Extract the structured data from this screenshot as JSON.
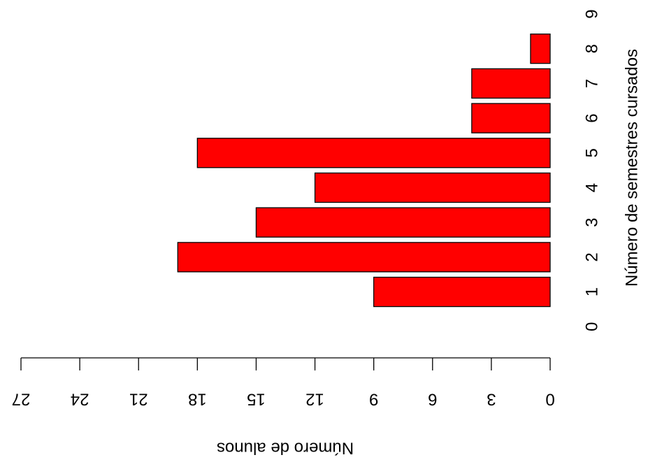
{
  "chart_data": {
    "type": "bar",
    "orientation": "horizontal",
    "x_label": "Número de alunos",
    "y_label": "Número de semestres cursados",
    "categories": [
      "0",
      "1",
      "2",
      "3",
      "4",
      "5",
      "6",
      "7",
      "8",
      "9"
    ],
    "values": [
      0,
      9,
      19,
      15,
      12,
      18,
      4,
      4,
      1,
      0
    ],
    "color": "#ff0000",
    "xlim": [
      0,
      27
    ],
    "xticks": [
      0,
      3,
      6,
      9,
      12,
      15,
      18,
      21,
      24,
      27
    ]
  }
}
